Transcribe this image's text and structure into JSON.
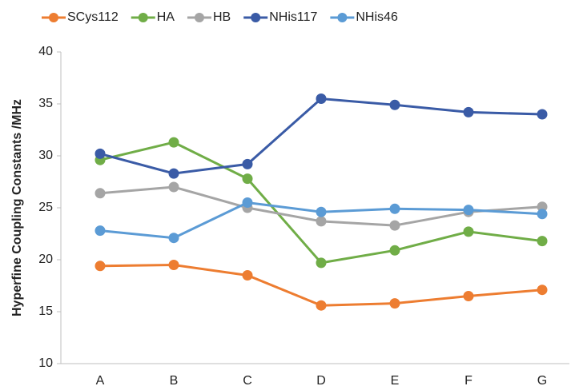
{
  "chart_data": {
    "type": "line",
    "ylabel": "Hyperfine Coupling Constants /MHz",
    "categories": [
      "A",
      "B",
      "C",
      "D",
      "E",
      "F",
      "G"
    ],
    "series": [
      {
        "name": "SCys112",
        "color": "#ed7d31",
        "values": [
          19.4,
          19.5,
          18.5,
          15.6,
          15.8,
          16.5,
          17.1
        ]
      },
      {
        "name": "HA",
        "color": "#70ad47",
        "values": [
          29.6,
          31.3,
          27.8,
          19.7,
          20.9,
          22.7,
          21.8
        ]
      },
      {
        "name": "HB",
        "color": "#a5a5a5",
        "values": [
          26.4,
          27.0,
          25.0,
          23.7,
          23.3,
          24.6,
          25.1
        ]
      },
      {
        "name": "NHis117",
        "color": "#3a5ba6",
        "values": [
          30.2,
          28.3,
          29.2,
          35.5,
          34.9,
          34.2,
          34.0
        ]
      },
      {
        "name": "NHis46",
        "color": "#5b9bd5",
        "values": [
          22.8,
          22.1,
          25.5,
          24.6,
          24.9,
          24.8,
          24.4
        ]
      }
    ],
    "ylim": [
      10,
      40
    ],
    "yticks": [
      10,
      15,
      20,
      25,
      30,
      35,
      40
    ],
    "grid": false,
    "legend": "top"
  }
}
